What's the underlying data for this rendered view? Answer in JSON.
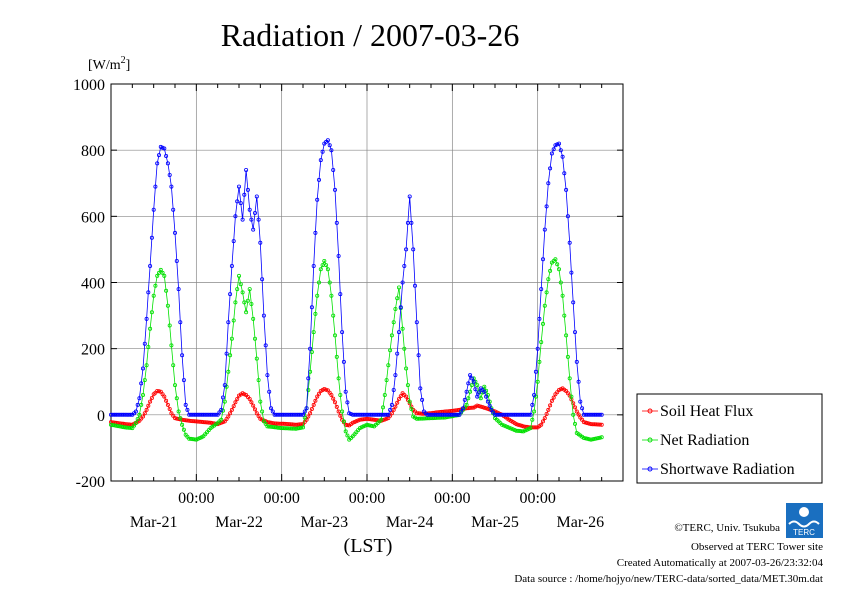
{
  "title": "Radiation / 2007-03-26",
  "unit_label": "[W/m²]",
  "chart_data": {
    "type": "line",
    "title": "Radiation / 2007-03-26",
    "ylabel": "[W/m²]",
    "xlabel": "(LST)",
    "ylim": [
      -200,
      1000
    ],
    "yticks": [
      -200,
      0,
      200,
      400,
      600,
      800,
      1000
    ],
    "x_unit": "hours since 2007-03-20 00:00",
    "xlim": [
      0,
      144
    ],
    "x_time_labels": [
      "00:00",
      "00:00",
      "00:00",
      "00:00",
      "00:00"
    ],
    "x_day_labels": [
      "Mar-21",
      "Mar-22",
      "Mar-23",
      "Mar-24",
      "Mar-25",
      "Mar-26"
    ],
    "grid": true,
    "legend_position": "right",
    "series": [
      {
        "name": "Soil Heat Flux",
        "color": "#ff0000",
        "points": [
          [
            0,
            -22
          ],
          [
            4,
            -28
          ],
          [
            6,
            -30
          ],
          [
            8,
            -18
          ],
          [
            9,
            -5
          ],
          [
            10,
            15
          ],
          [
            11,
            40
          ],
          [
            12,
            62
          ],
          [
            13,
            72
          ],
          [
            14,
            70
          ],
          [
            15,
            55
          ],
          [
            16,
            30
          ],
          [
            17,
            5
          ],
          [
            18,
            -10
          ],
          [
            20,
            -15
          ],
          [
            22,
            -18
          ],
          [
            24,
            -20
          ],
          [
            26,
            -22
          ],
          [
            28,
            -24
          ],
          [
            30,
            -28
          ],
          [
            32,
            -20
          ],
          [
            33,
            -5
          ],
          [
            34,
            15
          ],
          [
            35,
            38
          ],
          [
            36,
            58
          ],
          [
            37,
            65
          ],
          [
            38,
            60
          ],
          [
            39,
            48
          ],
          [
            40,
            28
          ],
          [
            41,
            5
          ],
          [
            42,
            -12
          ],
          [
            44,
            -22
          ],
          [
            46,
            -26
          ],
          [
            48,
            -27
          ],
          [
            50,
            -28
          ],
          [
            52,
            -30
          ],
          [
            54,
            -28
          ],
          [
            55,
            -15
          ],
          [
            56,
            5
          ],
          [
            57,
            30
          ],
          [
            58,
            55
          ],
          [
            59,
            72
          ],
          [
            60,
            78
          ],
          [
            61,
            74
          ],
          [
            62,
            60
          ],
          [
            63,
            38
          ],
          [
            64,
            10
          ],
          [
            65,
            -15
          ],
          [
            66,
            -30
          ],
          [
            67,
            -32
          ],
          [
            68,
            -24
          ],
          [
            70,
            -15
          ],
          [
            72,
            -12
          ],
          [
            74,
            -15
          ],
          [
            76,
            -18
          ],
          [
            78,
            -10
          ],
          [
            79,
            5
          ],
          [
            80,
            25
          ],
          [
            81,
            48
          ],
          [
            82,
            65
          ],
          [
            83,
            55
          ],
          [
            84,
            35
          ],
          [
            85,
            15
          ],
          [
            86,
            5
          ],
          [
            88,
            3
          ],
          [
            90,
            5
          ],
          [
            92,
            8
          ],
          [
            94,
            10
          ],
          [
            96,
            12
          ],
          [
            98,
            15
          ],
          [
            100,
            20
          ],
          [
            102,
            22
          ],
          [
            103,
            28
          ],
          [
            104,
            25
          ],
          [
            106,
            18
          ],
          [
            108,
            10
          ],
          [
            110,
            0
          ],
          [
            112,
            -15
          ],
          [
            114,
            -28
          ],
          [
            116,
            -35
          ],
          [
            118,
            -38
          ],
          [
            120,
            -38
          ],
          [
            121,
            -30
          ],
          [
            122,
            -10
          ],
          [
            123,
            15
          ],
          [
            124,
            42
          ],
          [
            125,
            62
          ],
          [
            126,
            75
          ],
          [
            127,
            80
          ],
          [
            128,
            72
          ],
          [
            129,
            58
          ],
          [
            130,
            35
          ],
          [
            131,
            10
          ],
          [
            132,
            -8
          ],
          [
            133,
            -22
          ],
          [
            135,
            -28
          ],
          [
            138,
            -30
          ]
        ]
      },
      {
        "name": "Net Radiation",
        "color": "#00e000",
        "points": [
          [
            0,
            -30
          ],
          [
            4,
            -38
          ],
          [
            6,
            -40
          ],
          [
            7,
            -25
          ],
          [
            8,
            0
          ],
          [
            9,
            60
          ],
          [
            10,
            150
          ],
          [
            11,
            260
          ],
          [
            12,
            360
          ],
          [
            13,
            420
          ],
          [
            14,
            438
          ],
          [
            15,
            420
          ],
          [
            16,
            330
          ],
          [
            17,
            210
          ],
          [
            18,
            90
          ],
          [
            19,
            10
          ],
          [
            20,
            -30
          ],
          [
            21,
            -60
          ],
          [
            22,
            -72
          ],
          [
            24,
            -75
          ],
          [
            26,
            -65
          ],
          [
            28,
            -40
          ],
          [
            30,
            -25
          ],
          [
            31,
            -15
          ],
          [
            32,
            40
          ],
          [
            33,
            130
          ],
          [
            34,
            230
          ],
          [
            35,
            340
          ],
          [
            36,
            420
          ],
          [
            37,
            370
          ],
          [
            38,
            310
          ],
          [
            39,
            380
          ],
          [
            40,
            290
          ],
          [
            41,
            170
          ],
          [
            42,
            40
          ],
          [
            43,
            -20
          ],
          [
            44,
            -35
          ],
          [
            48,
            -40
          ],
          [
            52,
            -42
          ],
          [
            54,
            -38
          ],
          [
            55,
            20
          ],
          [
            56,
            130
          ],
          [
            57,
            250
          ],
          [
            58,
            360
          ],
          [
            59,
            440
          ],
          [
            60,
            465
          ],
          [
            61,
            440
          ],
          [
            62,
            360
          ],
          [
            63,
            240
          ],
          [
            64,
            110
          ],
          [
            65,
            10
          ],
          [
            66,
            -50
          ],
          [
            67,
            -75
          ],
          [
            68,
            -65
          ],
          [
            70,
            -40
          ],
          [
            72,
            -30
          ],
          [
            74,
            -35
          ],
          [
            76,
            -15
          ],
          [
            77,
            60
          ],
          [
            78,
            150
          ],
          [
            79,
            240
          ],
          [
            80,
            320
          ],
          [
            81,
            385
          ],
          [
            82,
            260
          ],
          [
            83,
            140
          ],
          [
            84,
            40
          ],
          [
            85,
            -5
          ],
          [
            86,
            -12
          ],
          [
            90,
            -10
          ],
          [
            94,
            -8
          ],
          [
            98,
            0
          ],
          [
            100,
            30
          ],
          [
            101,
            70
          ],
          [
            102,
            110
          ],
          [
            103,
            90
          ],
          [
            104,
            50
          ],
          [
            105,
            85
          ],
          [
            106,
            60
          ],
          [
            107,
            20
          ],
          [
            108,
            -10
          ],
          [
            110,
            -30
          ],
          [
            114,
            -48
          ],
          [
            116,
            -50
          ],
          [
            118,
            -40
          ],
          [
            119,
            10
          ],
          [
            120,
            100
          ],
          [
            121,
            220
          ],
          [
            122,
            330
          ],
          [
            123,
            410
          ],
          [
            124,
            460
          ],
          [
            125,
            470
          ],
          [
            126,
            440
          ],
          [
            127,
            360
          ],
          [
            128,
            240
          ],
          [
            129,
            110
          ],
          [
            130,
            0
          ],
          [
            131,
            -55
          ],
          [
            133,
            -70
          ],
          [
            135,
            -75
          ],
          [
            138,
            -68
          ]
        ]
      },
      {
        "name": "Shortwave Radiation",
        "color": "#0000ff",
        "points": [
          [
            0,
            0
          ],
          [
            6,
            0
          ],
          [
            7,
            10
          ],
          [
            8,
            50
          ],
          [
            9,
            140
          ],
          [
            10,
            290
          ],
          [
            11,
            450
          ],
          [
            12,
            620
          ],
          [
            13,
            760
          ],
          [
            14,
            810
          ],
          [
            15,
            805
          ],
          [
            16,
            760
          ],
          [
            17,
            690
          ],
          [
            18,
            550
          ],
          [
            19,
            380
          ],
          [
            20,
            180
          ],
          [
            21,
            30
          ],
          [
            22,
            0
          ],
          [
            30,
            0
          ],
          [
            31,
            15
          ],
          [
            32,
            90
          ],
          [
            33,
            280
          ],
          [
            34,
            450
          ],
          [
            35,
            600
          ],
          [
            36,
            690
          ],
          [
            37,
            590
          ],
          [
            38,
            740
          ],
          [
            39,
            620
          ],
          [
            40,
            560
          ],
          [
            41,
            660
          ],
          [
            42,
            520
          ],
          [
            43,
            300
          ],
          [
            44,
            120
          ],
          [
            45,
            20
          ],
          [
            46,
            0
          ],
          [
            54,
            0
          ],
          [
            55,
            20
          ],
          [
            56,
            200
          ],
          [
            57,
            450
          ],
          [
            58,
            650
          ],
          [
            59,
            770
          ],
          [
            60,
            820
          ],
          [
            61,
            830
          ],
          [
            62,
            800
          ],
          [
            63,
            680
          ],
          [
            64,
            480
          ],
          [
            65,
            250
          ],
          [
            66,
            70
          ],
          [
            67,
            5
          ],
          [
            68,
            0
          ],
          [
            78,
            0
          ],
          [
            79,
            30
          ],
          [
            80,
            120
          ],
          [
            81,
            250
          ],
          [
            82,
            400
          ],
          [
            83,
            500
          ],
          [
            84,
            660
          ],
          [
            85,
            500
          ],
          [
            86,
            280
          ],
          [
            87,
            80
          ],
          [
            88,
            10
          ],
          [
            89,
            0
          ],
          [
            98,
            0
          ],
          [
            99,
            20
          ],
          [
            100,
            70
          ],
          [
            101,
            120
          ],
          [
            102,
            100
          ],
          [
            103,
            55
          ],
          [
            104,
            80
          ],
          [
            105,
            70
          ],
          [
            106,
            40
          ],
          [
            107,
            15
          ],
          [
            108,
            0
          ],
          [
            118,
            0
          ],
          [
            119,
            60
          ],
          [
            120,
            200
          ],
          [
            121,
            380
          ],
          [
            122,
            560
          ],
          [
            123,
            700
          ],
          [
            124,
            790
          ],
          [
            125,
            815
          ],
          [
            126,
            820
          ],
          [
            127,
            780
          ],
          [
            128,
            680
          ],
          [
            129,
            520
          ],
          [
            130,
            340
          ],
          [
            131,
            160
          ],
          [
            132,
            40
          ],
          [
            133,
            0
          ],
          [
            138,
            0
          ]
        ]
      }
    ]
  },
  "footer": {
    "copyright": "©TERC, Univ. Tsukuba",
    "observed": "Observed at TERC Tower site",
    "created": "Created Automatically at 2007-03-26/23:32:04",
    "source": "Data source : /home/hojyo/new/TERC-data/sorted_data/MET.30m.dat"
  },
  "logo": {
    "text": "TERC",
    "color": "#1a6fc0"
  }
}
